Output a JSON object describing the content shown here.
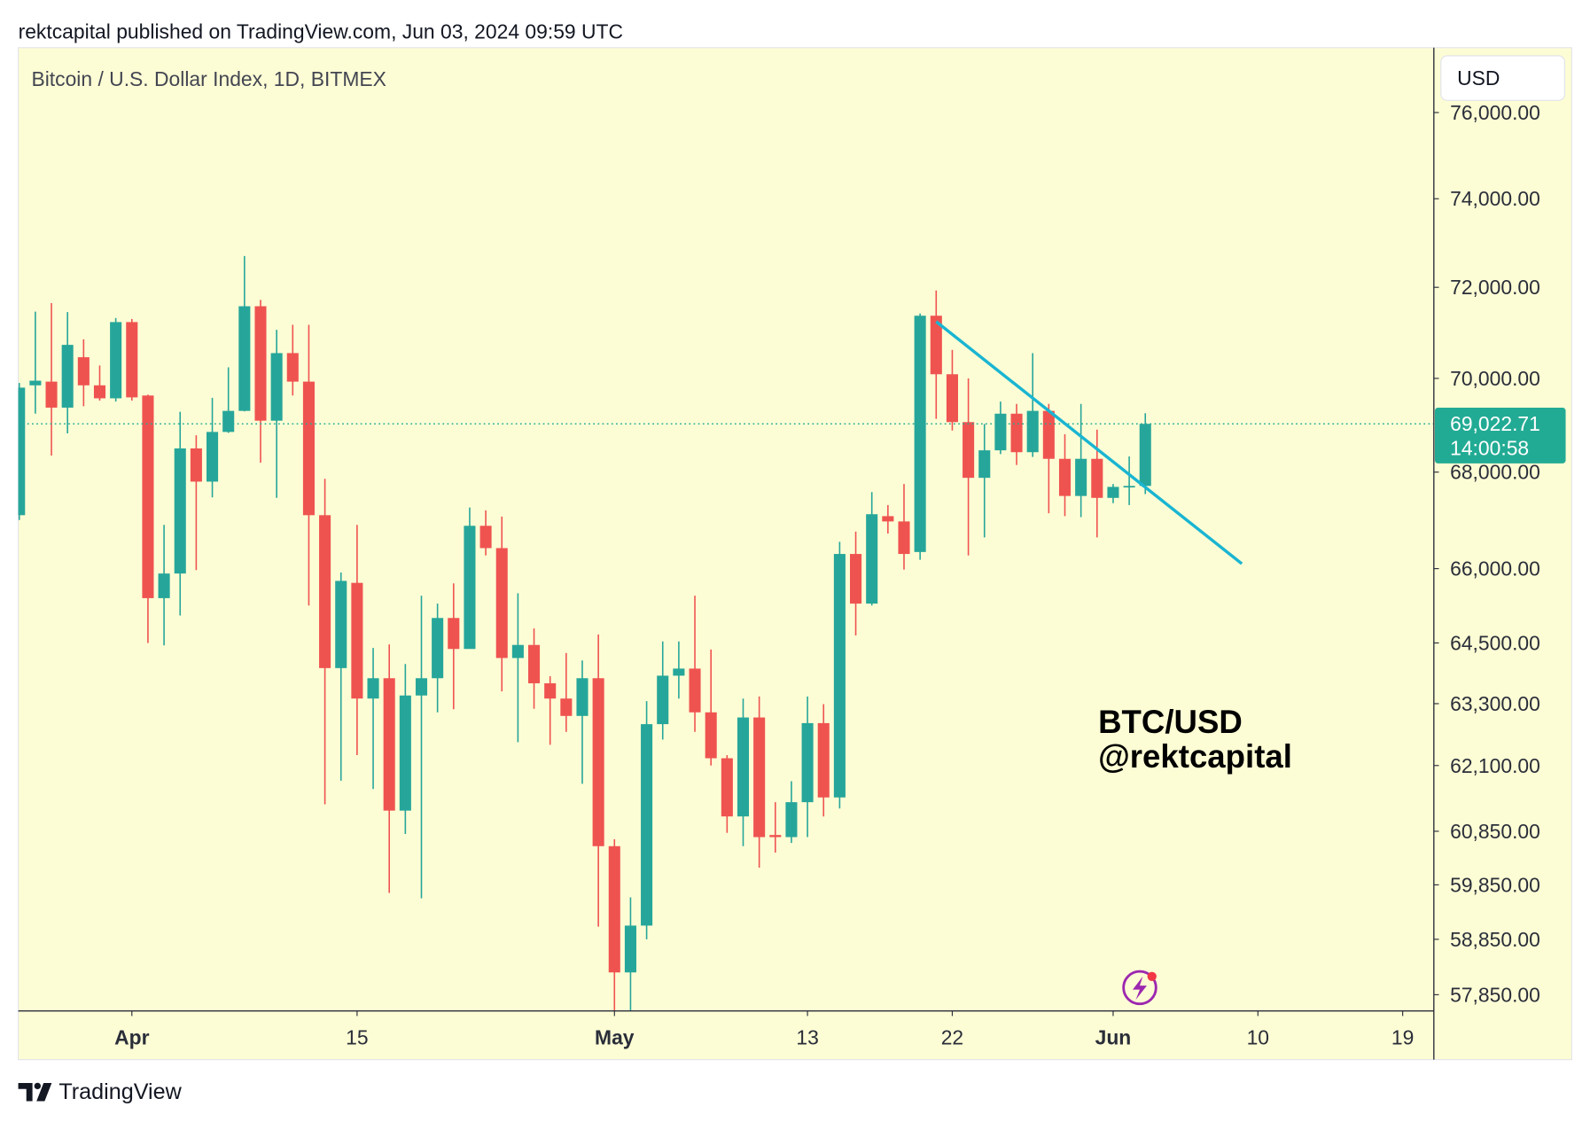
{
  "source": "rektcapital published on TradingView.com, Jun 03, 2024 09:59 UTC",
  "brand": "TradingView",
  "chart_data": {
    "type": "candlestick",
    "title": "Bitcoin / U.S. Dollar Index, 1D, BITMEX",
    "currency": "USD",
    "log_scale": true,
    "up_color": "#26a69a",
    "down_color": "#ef5350",
    "x": [
      "2024-03-25",
      "2024-03-26",
      "2024-03-27",
      "2024-03-28",
      "2024-03-29",
      "2024-03-30",
      "2024-03-31",
      "2024-04-01",
      "2024-04-02",
      "2024-04-03",
      "2024-04-04",
      "2024-04-05",
      "2024-04-06",
      "2024-04-07",
      "2024-04-08",
      "2024-04-09",
      "2024-04-10",
      "2024-04-11",
      "2024-04-12",
      "2024-04-13",
      "2024-04-14",
      "2024-04-15",
      "2024-04-16",
      "2024-04-17",
      "2024-04-18",
      "2024-04-19",
      "2024-04-20",
      "2024-04-21",
      "2024-04-22",
      "2024-04-23",
      "2024-04-24",
      "2024-04-25",
      "2024-04-26",
      "2024-04-27",
      "2024-04-28",
      "2024-04-29",
      "2024-04-30",
      "2024-05-01",
      "2024-05-02",
      "2024-05-03",
      "2024-05-04",
      "2024-05-05",
      "2024-05-06",
      "2024-05-07",
      "2024-05-08",
      "2024-05-09",
      "2024-05-10",
      "2024-05-11",
      "2024-05-12",
      "2024-05-13",
      "2024-05-14",
      "2024-05-15",
      "2024-05-16",
      "2024-05-17",
      "2024-05-18",
      "2024-05-19",
      "2024-05-20",
      "2024-05-21",
      "2024-05-22",
      "2024-05-23",
      "2024-05-24",
      "2024-05-25",
      "2024-05-26",
      "2024-05-27",
      "2024-05-28",
      "2024-05-29",
      "2024-05-30",
      "2024-05-31",
      "2024-06-01",
      "2024-06-02",
      "2024-06-03"
    ],
    "open": [
      67100,
      69850,
      69930,
      69370,
      70460,
      69850,
      69570,
      71230,
      69630,
      65400,
      65900,
      68500,
      67800,
      68850,
      69300,
      71580,
      69090,
      70550,
      69930,
      67100,
      64000,
      65710,
      63400,
      63800,
      61240,
      63460,
      63800,
      65000,
      64380,
      66880,
      66420,
      64200,
      64460,
      63700,
      63400,
      63060,
      63800,
      60570,
      58250,
      59100,
      62900,
      63850,
      63990,
      63130,
      62240,
      61130,
      63030,
      60780,
      60740,
      61400,
      62920,
      61490,
      66300,
      65290,
      67080,
      66970,
      66340,
      71370,
      70090,
      69060,
      67880,
      68460,
      69240,
      68420,
      69300,
      68280,
      67500,
      68280,
      67460,
      67690,
      67710
    ],
    "high": [
      69900,
      71460,
      71650,
      71450,
      70850,
      70280,
      71320,
      71300,
      69650,
      66900,
      69280,
      68780,
      69580,
      70240,
      72700,
      71720,
      71060,
      71170,
      71170,
      67860,
      65920,
      66900,
      64400,
      64470,
      64080,
      65450,
      65290,
      65700,
      67260,
      67200,
      67070,
      65500,
      64790,
      63840,
      64300,
      64150,
      64670,
      60700,
      59620,
      63350,
      64530,
      64530,
      65450,
      64370,
      62300,
      63400,
      63440,
      61400,
      61800,
      63440,
      63290,
      66550,
      66760,
      67580,
      67310,
      67750,
      71420,
      71930,
      70620,
      70000,
      69020,
      69500,
      69450,
      70550,
      69450,
      68800,
      69450,
      68900,
      67750,
      68330,
      69250
    ],
    "low": [
      67000,
      69240,
      68350,
      68820,
      69400,
      69520,
      69500,
      69520,
      64500,
      64450,
      65050,
      65970,
      67470,
      68830,
      69290,
      68200,
      67460,
      69630,
      65250,
      61360,
      61810,
      62300,
      61650,
      59700,
      60800,
      59600,
      63130,
      63190,
      64520,
      66270,
      63540,
      62550,
      63200,
      62500,
      62750,
      61750,
      59080,
      57400,
      57400,
      58850,
      62600,
      63400,
      62750,
      62100,
      60820,
      60570,
      60170,
      60450,
      60630,
      60740,
      61130,
      61280,
      64650,
      65250,
      66720,
      65980,
      66180,
      69130,
      68880,
      66270,
      66640,
      68380,
      68150,
      68320,
      67140,
      67080,
      67060,
      66640,
      67350,
      67310,
      67540
    ],
    "close": [
      69800,
      69950,
      69370,
      70730,
      69850,
      69570,
      71230,
      69590,
      65400,
      65900,
      68500,
      67800,
      68850,
      69300,
      71580,
      69090,
      70550,
      69930,
      67100,
      64000,
      65750,
      63400,
      63800,
      61240,
      63460,
      63800,
      65000,
      64380,
      66880,
      66420,
      64200,
      64460,
      63700,
      63400,
      63060,
      63800,
      60570,
      58250,
      59100,
      62900,
      63850,
      63990,
      63130,
      62240,
      61130,
      63030,
      60740,
      60740,
      61400,
      62920,
      61490,
      66300,
      65290,
      67120,
      66970,
      66300,
      71370,
      70090,
      69060,
      67880,
      68460,
      69240,
      68420,
      69300,
      68280,
      67500,
      68280,
      67460,
      67690,
      67710,
      69022.71
    ],
    "xlim": [
      "2024-03-25",
      "2024-06-21"
    ],
    "xticks": [
      {
        "value": "2024-04-01",
        "label": "Apr"
      },
      {
        "value": "2024-04-15",
        "label": "15"
      },
      {
        "value": "2024-05-01",
        "label": "May"
      },
      {
        "value": "2024-05-13",
        "label": "13"
      },
      {
        "value": "2024-05-22",
        "label": "22"
      },
      {
        "value": "2024-06-01",
        "label": "Jun"
      },
      {
        "value": "2024-06-10",
        "label": "10"
      },
      {
        "value": "2024-06-19",
        "label": "19"
      }
    ],
    "ylim": [
      57560,
      77516
    ],
    "yticks": [
      {
        "value": 76000,
        "label": "76,000.00"
      },
      {
        "value": 74000,
        "label": "74,000.00"
      },
      {
        "value": 72000,
        "label": "72,000.00"
      },
      {
        "value": 70000,
        "label": "70,000.00"
      },
      {
        "value": 68000,
        "label": "68,000.00"
      },
      {
        "value": 66000,
        "label": "66,000.00"
      },
      {
        "value": 64500,
        "label": "64,500.00"
      },
      {
        "value": 63300,
        "label": "63,300.00"
      },
      {
        "value": 62100,
        "label": "62,100.00"
      },
      {
        "value": 60850,
        "label": "60,850.00"
      },
      {
        "value": 59850,
        "label": "59,850.00"
      },
      {
        "value": 58850,
        "label": "58,850.00"
      },
      {
        "value": 57850,
        "label": "57,850.00"
      }
    ],
    "last_price": {
      "value": 69022.71,
      "label": "69,022.71",
      "color": "#22ab94"
    },
    "countdown": "14:00:58",
    "trendline": {
      "x": [
        "2024-05-21",
        "2024-06-09"
      ],
      "y": [
        71240,
        66100
      ],
      "color": "#1ab5d2"
    },
    "annotations": [
      "BTC/USD",
      "@rektcapital"
    ]
  }
}
